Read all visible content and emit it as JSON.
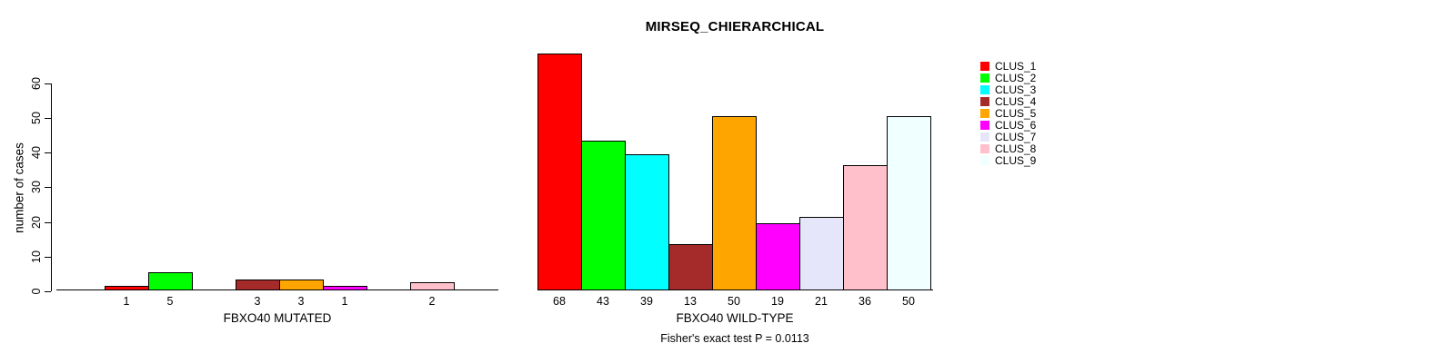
{
  "figure": {
    "title": "MIRSEQ_CHIERARCHICAL",
    "ylabel": "number of cases",
    "annotation": "Fisher's exact test P = 0.0113"
  },
  "legend": {
    "items": [
      {
        "label": "CLUS_1",
        "color": "#FF0000"
      },
      {
        "label": "CLUS_2",
        "color": "#00FF00"
      },
      {
        "label": "CLUS_3",
        "color": "#00FFFF"
      },
      {
        "label": "CLUS_4",
        "color": "#A52A2A"
      },
      {
        "label": "CLUS_5",
        "color": "#FFA500"
      },
      {
        "label": "CLUS_6",
        "color": "#FF00FF"
      },
      {
        "label": "CLUS_7",
        "color": "#E6E6FA"
      },
      {
        "label": "CLUS_8",
        "color": "#FFC0CB"
      },
      {
        "label": "CLUS_9",
        "color": "#F0FFFF"
      }
    ]
  },
  "chart_data": [
    {
      "type": "bar",
      "title": "MIRSEQ_CHIERARCHICAL",
      "xlabel": "FBXO40 MUTATED",
      "ylabel": "number of cases",
      "ylim": [
        0,
        60
      ],
      "yticks": [
        0,
        10,
        20,
        30,
        40,
        50,
        60
      ],
      "grid": false,
      "legend_position": "right",
      "categories": [
        "CLUS_1",
        "CLUS_2",
        "CLUS_3",
        "CLUS_4",
        "CLUS_5",
        "CLUS_6",
        "CLUS_7",
        "CLUS_8",
        "CLUS_9"
      ],
      "values": [
        1,
        5,
        0,
        3,
        3,
        1,
        0,
        2,
        0
      ],
      "bar_value_labels": [
        "1",
        "5",
        "",
        "3",
        "3",
        "1",
        "",
        "2",
        ""
      ],
      "colors": [
        "#FF0000",
        "#00FF00",
        "#00FFFF",
        "#A52A2A",
        "#FFA500",
        "#FF00FF",
        "#E6E6FA",
        "#FFC0CB",
        "#F0FFFF"
      ]
    },
    {
      "type": "bar",
      "xlabel": "FBXO40 WILD-TYPE",
      "ylim": [
        0,
        60
      ],
      "grid": false,
      "categories": [
        "CLUS_1",
        "CLUS_2",
        "CLUS_3",
        "CLUS_4",
        "CLUS_5",
        "CLUS_6",
        "CLUS_7",
        "CLUS_8",
        "CLUS_9"
      ],
      "values": [
        68,
        43,
        39,
        13,
        50,
        19,
        21,
        36,
        50
      ],
      "bar_value_labels": [
        "68",
        "43",
        "39",
        "13",
        "50",
        "19",
        "21",
        "36",
        "50"
      ],
      "colors": [
        "#FF0000",
        "#00FF00",
        "#00FFFF",
        "#A52A2A",
        "#FFA500",
        "#FF00FF",
        "#E6E6FA",
        "#FFC0CB",
        "#F0FFFF"
      ]
    }
  ]
}
